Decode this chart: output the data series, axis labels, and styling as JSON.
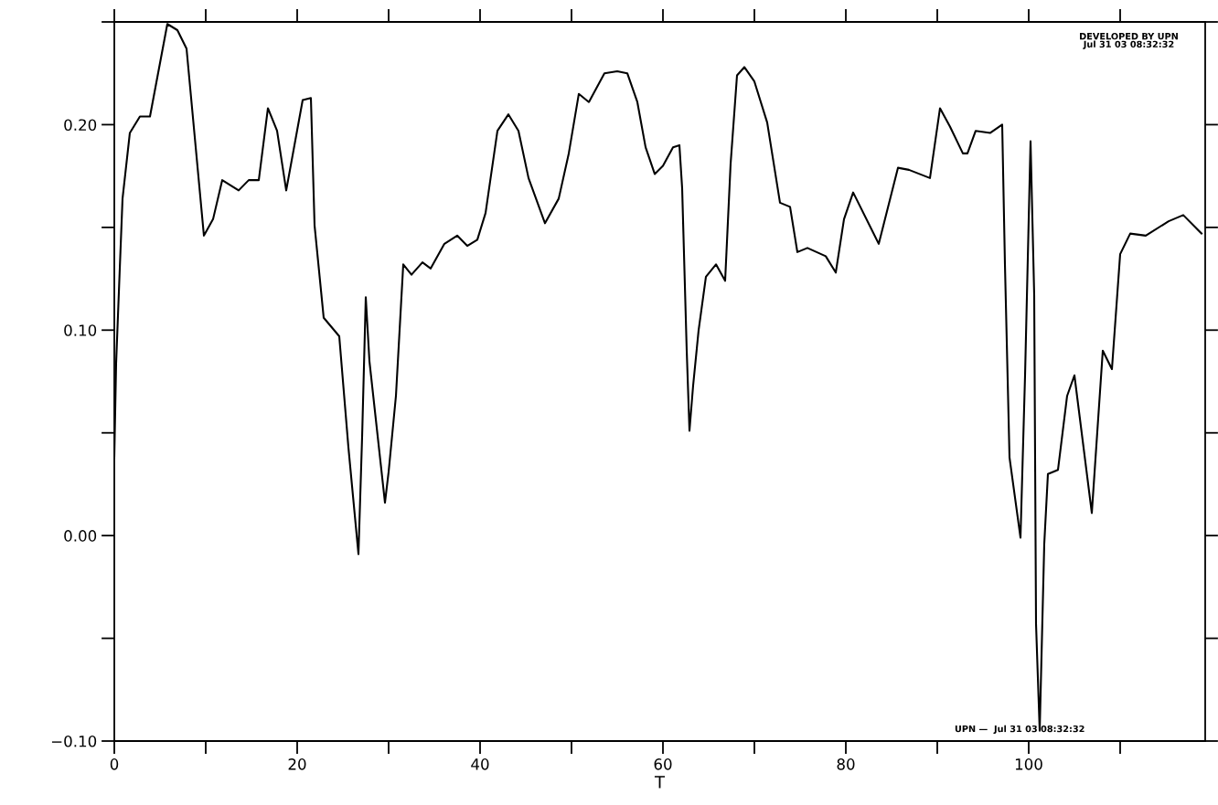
{
  "chart_data": {
    "type": "line",
    "xlabel": "T",
    "x": [
      0.0,
      0.2,
      0.6,
      0.9,
      1.7,
      2.8,
      3.9,
      5.8,
      6.9,
      7.9,
      9.8,
      10.8,
      11.8,
      13.6,
      14.7,
      15.8,
      16.8,
      17.8,
      18.8,
      20.6,
      21.5,
      21.9,
      22.9,
      24.6,
      25.6,
      26.7,
      27.1,
      27.5,
      27.9,
      29.6,
      30.0,
      30.8,
      31.6,
      32.5,
      33.7,
      34.6,
      36.1,
      37.5,
      38.6,
      39.7,
      40.6,
      41.9,
      43.1,
      44.2,
      45.3,
      47.1,
      48.6,
      49.7,
      50.8,
      51.9,
      53.6,
      55.0,
      56.1,
      57.2,
      58.1,
      59.1,
      60.0,
      61.1,
      61.8,
      62.1,
      62.6,
      62.9,
      63.3,
      63.9,
      64.7,
      65.8,
      66.8,
      67.4,
      68.1,
      68.9,
      70.0,
      71.4,
      72.8,
      73.9,
      74.7,
      75.8,
      77.8,
      78.9,
      79.8,
      80.8,
      83.6,
      85.7,
      86.9,
      89.2,
      90.3,
      91.4,
      92.8,
      93.3,
      94.2,
      95.8,
      97.1,
      97.4,
      97.9,
      99.1,
      99.6,
      100.2,
      100.6,
      100.8,
      101.2,
      101.7,
      102.1,
      103.2,
      104.2,
      105.0,
      106.9,
      108.1,
      109.1,
      110.0,
      111.1,
      112.8,
      115.3,
      116.9,
      118.9
    ],
    "series": [
      {
        "color": "#000000",
        "values": [
          0.038,
          0.084,
          0.13,
          0.164,
          0.196,
          0.204,
          0.204,
          0.249,
          0.246,
          0.237,
          0.146,
          0.154,
          0.173,
          0.168,
          0.173,
          0.173,
          0.208,
          0.197,
          0.168,
          0.212,
          0.213,
          0.151,
          0.106,
          0.097,
          0.043,
          -0.009,
          0.048,
          0.116,
          0.085,
          0.016,
          0.031,
          0.068,
          0.132,
          0.127,
          0.133,
          0.13,
          0.142,
          0.146,
          0.141,
          0.144,
          0.157,
          0.197,
          0.205,
          0.197,
          0.174,
          0.152,
          0.164,
          0.186,
          0.215,
          0.211,
          0.225,
          0.226,
          0.225,
          0.211,
          0.189,
          0.176,
          0.18,
          0.189,
          0.19,
          0.169,
          0.09,
          0.051,
          0.073,
          0.1,
          0.126,
          0.132,
          0.124,
          0.181,
          0.224,
          0.228,
          0.221,
          0.201,
          0.162,
          0.16,
          0.138,
          0.14,
          0.136,
          0.128,
          0.154,
          0.167,
          0.142,
          0.179,
          0.178,
          0.174,
          0.208,
          0.199,
          0.186,
          0.186,
          0.197,
          0.196,
          0.2,
          0.132,
          0.038,
          -0.001,
          0.078,
          0.192,
          0.117,
          -0.043,
          -0.095,
          -0.004,
          0.03,
          0.032,
          0.068,
          0.078,
          0.011,
          0.09,
          0.081,
          0.137,
          0.147,
          0.146,
          0.153,
          0.156,
          0.147
        ]
      }
    ],
    "xlim": [
      0,
      119.3
    ],
    "xticks": [
      0,
      {
        "value": 10,
        "label": null
      },
      20,
      {
        "value": 30,
        "label": null
      },
      40,
      {
        "value": 50,
        "label": null
      },
      60,
      {
        "value": 70,
        "label": null
      },
      80,
      {
        "value": 90,
        "label": null
      },
      100,
      {
        "value": 110,
        "label": null
      }
    ],
    "ylim": [
      -0.1,
      0.25
    ],
    "yticks": [
      {
        "value": -0.1,
        "label": "−0.10"
      },
      {
        "value": -0.05,
        "label": null
      },
      {
        "value": 0,
        "label": "0.00"
      },
      {
        "value": 0.05,
        "label": null
      },
      {
        "value": 0.1,
        "label": "0.10"
      },
      {
        "value": 0.15,
        "label": null
      },
      {
        "value": 0.2,
        "label": "0.20"
      },
      {
        "value": 0.25,
        "label": null
      }
    ],
    "annotations": [
      "DEVELOPED BY UPN\nJul 31 03 08:32:32",
      "UPN —  Jul 31 03 08:32:32"
    ],
    "grid": false,
    "marker": "none",
    "line_style": "solid"
  }
}
